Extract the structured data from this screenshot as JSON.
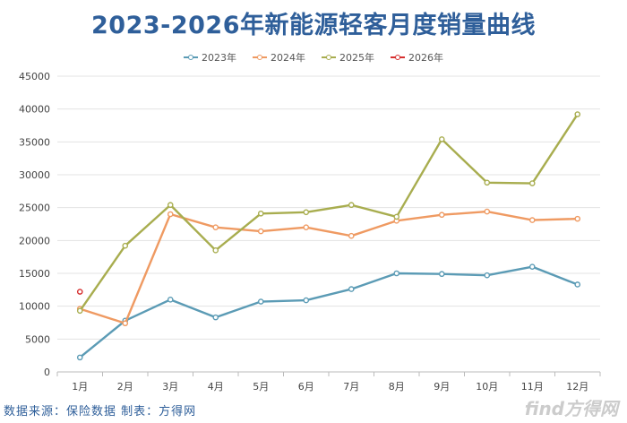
{
  "source_text": "数据来源：保险数据 制表：方得网",
  "watermark": "find方得网",
  "chart_data": {
    "type": "line",
    "title": "2023-2026年新能源轻客月度销量曲线",
    "categories": [
      "1月",
      "2月",
      "3月",
      "4月",
      "5月",
      "6月",
      "7月",
      "8月",
      "9月",
      "10月",
      "11月",
      "12月"
    ],
    "ylim": [
      0,
      45000
    ],
    "yticks": [
      0,
      5000,
      10000,
      15000,
      20000,
      25000,
      30000,
      35000,
      40000,
      45000
    ],
    "grid": true,
    "legend_position": "top",
    "series": [
      {
        "name": "2023年",
        "color": "#5b9bb5",
        "values": [
          2200,
          7800,
          11000,
          8300,
          10700,
          10900,
          12600,
          15000,
          14900,
          14700,
          16000,
          13300
        ]
      },
      {
        "name": "2024年",
        "color": "#ef9a62",
        "values": [
          9600,
          7400,
          24000,
          22000,
          21400,
          22000,
          20700,
          23000,
          23900,
          24400,
          23100,
          23300
        ]
      },
      {
        "name": "2025年",
        "color": "#a8ad4f",
        "values": [
          9300,
          19200,
          25400,
          18500,
          24100,
          24300,
          25400,
          23600,
          35400,
          28800,
          28700,
          39200
        ]
      },
      {
        "name": "2026年",
        "color": "#d62f2f",
        "values": [
          12200,
          null,
          null,
          null,
          null,
          null,
          null,
          null,
          null,
          null,
          null,
          null
        ]
      }
    ]
  }
}
